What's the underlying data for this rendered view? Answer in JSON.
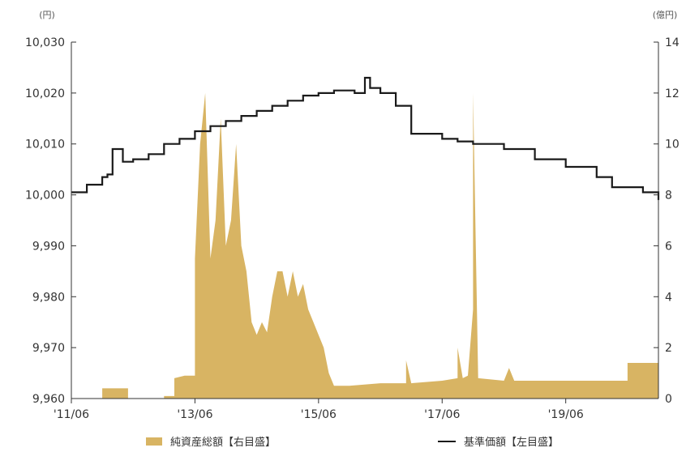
{
  "chart_data": {
    "type": "area",
    "left_unit": "(円)",
    "right_unit": "(億円)",
    "x_ticks": [
      "'11/06",
      "'13/06",
      "'15/06",
      "'17/06",
      "'19/06"
    ],
    "y_left_ticks": [
      "9,960",
      "9,970",
      "9,980",
      "9,990",
      "10,000",
      "10,010",
      "10,020",
      "10,030"
    ],
    "y_right_ticks": [
      "0",
      "2",
      "4",
      "6",
      "8",
      "10",
      "12",
      "14"
    ],
    "ylim_left": [
      9960,
      10030
    ],
    "ylim_right": [
      0,
      14
    ],
    "xlim": [
      "2011-06",
      "2020-12"
    ],
    "legend": {
      "position": "bottom",
      "items": [
        {
          "label": "純資産総額【右目盛】",
          "color": "#d8b463"
        },
        {
          "label": "基準価額【左目盛】",
          "color": "#1a1a1a"
        }
      ]
    },
    "series": [
      {
        "name": "純資産総額【右目盛】",
        "axis": "right",
        "kind": "area",
        "color": "#d8b463",
        "points": [
          [
            "2011-06",
            0
          ],
          [
            "2011-12",
            0
          ],
          [
            "2011-12",
            0.4
          ],
          [
            "2012-05",
            0.4
          ],
          [
            "2012-05",
            0
          ],
          [
            "2012-12",
            0
          ],
          [
            "2012-12",
            0.1
          ],
          [
            "2013-01",
            0.1
          ],
          [
            "2013-02",
            0.1
          ],
          [
            "2013-02",
            0.8
          ],
          [
            "2013-04",
            0.9
          ],
          [
            "2013-06",
            0.9
          ],
          [
            "2013-06",
            5.5
          ],
          [
            "2013-07",
            10.0
          ],
          [
            "2013-08",
            12.0
          ],
          [
            "2013-09",
            5.5
          ],
          [
            "2013-10",
            7.0
          ],
          [
            "2013-11",
            11.0
          ],
          [
            "2013-12",
            6.0
          ],
          [
            "2014-01",
            7.0
          ],
          [
            "2014-02",
            10.0
          ],
          [
            "2014-03",
            6.0
          ],
          [
            "2014-04",
            5.0
          ],
          [
            "2014-05",
            3.0
          ],
          [
            "2014-06",
            2.5
          ],
          [
            "2014-07",
            3.0
          ],
          [
            "2014-08",
            2.6
          ],
          [
            "2014-09",
            4.0
          ],
          [
            "2014-10",
            5.0
          ],
          [
            "2014-11",
            5.0
          ],
          [
            "2014-12",
            4.0
          ],
          [
            "2015-01",
            5.0
          ],
          [
            "2015-02",
            4.0
          ],
          [
            "2015-03",
            4.5
          ],
          [
            "2015-04",
            3.5
          ],
          [
            "2015-05",
            3.0
          ],
          [
            "2015-06",
            2.5
          ],
          [
            "2015-07",
            2.0
          ],
          [
            "2015-08",
            1.0
          ],
          [
            "2015-09",
            0.5
          ],
          [
            "2015-12",
            0.5
          ],
          [
            "2016-06",
            0.6
          ],
          [
            "2016-11",
            0.6
          ],
          [
            "2016-11",
            1.5
          ],
          [
            "2016-12",
            0.6
          ],
          [
            "2017-06",
            0.7
          ],
          [
            "2017-09",
            0.8
          ],
          [
            "2017-09",
            2.0
          ],
          [
            "2017-10",
            0.8
          ],
          [
            "2017-11",
            0.9
          ],
          [
            "2017-12",
            3.5
          ],
          [
            "2017-12",
            12.0
          ],
          [
            "2018-01",
            0.8
          ],
          [
            "2018-06",
            0.7
          ],
          [
            "2018-07",
            1.2
          ],
          [
            "2018-08",
            0.7
          ],
          [
            "2019-01",
            0.7
          ],
          [
            "2020-06",
            0.7
          ],
          [
            "2020-06",
            1.4
          ],
          [
            "2020-12",
            1.4
          ],
          [
            "2020-12",
            0
          ]
        ]
      },
      {
        "name": "基準価額【左目盛】",
        "axis": "left",
        "kind": "line",
        "color": "#1a1a1a",
        "points": [
          [
            "2011-06",
            10000.5
          ],
          [
            "2011-09",
            10002
          ],
          [
            "2011-12",
            10003.5
          ],
          [
            "2012-01",
            10004
          ],
          [
            "2012-02",
            10009
          ],
          [
            "2012-04",
            10009
          ],
          [
            "2012-04",
            10006.5
          ],
          [
            "2012-06",
            10007
          ],
          [
            "2012-09",
            10008
          ],
          [
            "2012-12",
            10010
          ],
          [
            "2013-03",
            10011
          ],
          [
            "2013-06",
            10012.5
          ],
          [
            "2013-09",
            10013.5
          ],
          [
            "2013-12",
            10014.5
          ],
          [
            "2014-03",
            10015.5
          ],
          [
            "2014-06",
            10016.5
          ],
          [
            "2014-09",
            10017.5
          ],
          [
            "2014-12",
            10018.5
          ],
          [
            "2015-03",
            10019.5
          ],
          [
            "2015-06",
            10020
          ],
          [
            "2015-09",
            10020.5
          ],
          [
            "2015-12",
            10020.5
          ],
          [
            "2016-01",
            10020
          ],
          [
            "2016-03",
            10023
          ],
          [
            "2016-04",
            10021
          ],
          [
            "2016-06",
            10020
          ],
          [
            "2016-09",
            10017.5
          ],
          [
            "2016-12",
            10013
          ],
          [
            "2016-12",
            10012
          ],
          [
            "2017-06",
            10011
          ],
          [
            "2017-09",
            10010.5
          ],
          [
            "2017-12",
            10010
          ],
          [
            "2018-06",
            10009
          ],
          [
            "2018-12",
            10007
          ],
          [
            "2019-06",
            10005.5
          ],
          [
            "2019-12",
            10003.5
          ],
          [
            "2020-03",
            10001.5
          ],
          [
            "2020-09",
            10000.5
          ],
          [
            "2020-12",
            9999
          ]
        ]
      }
    ]
  }
}
